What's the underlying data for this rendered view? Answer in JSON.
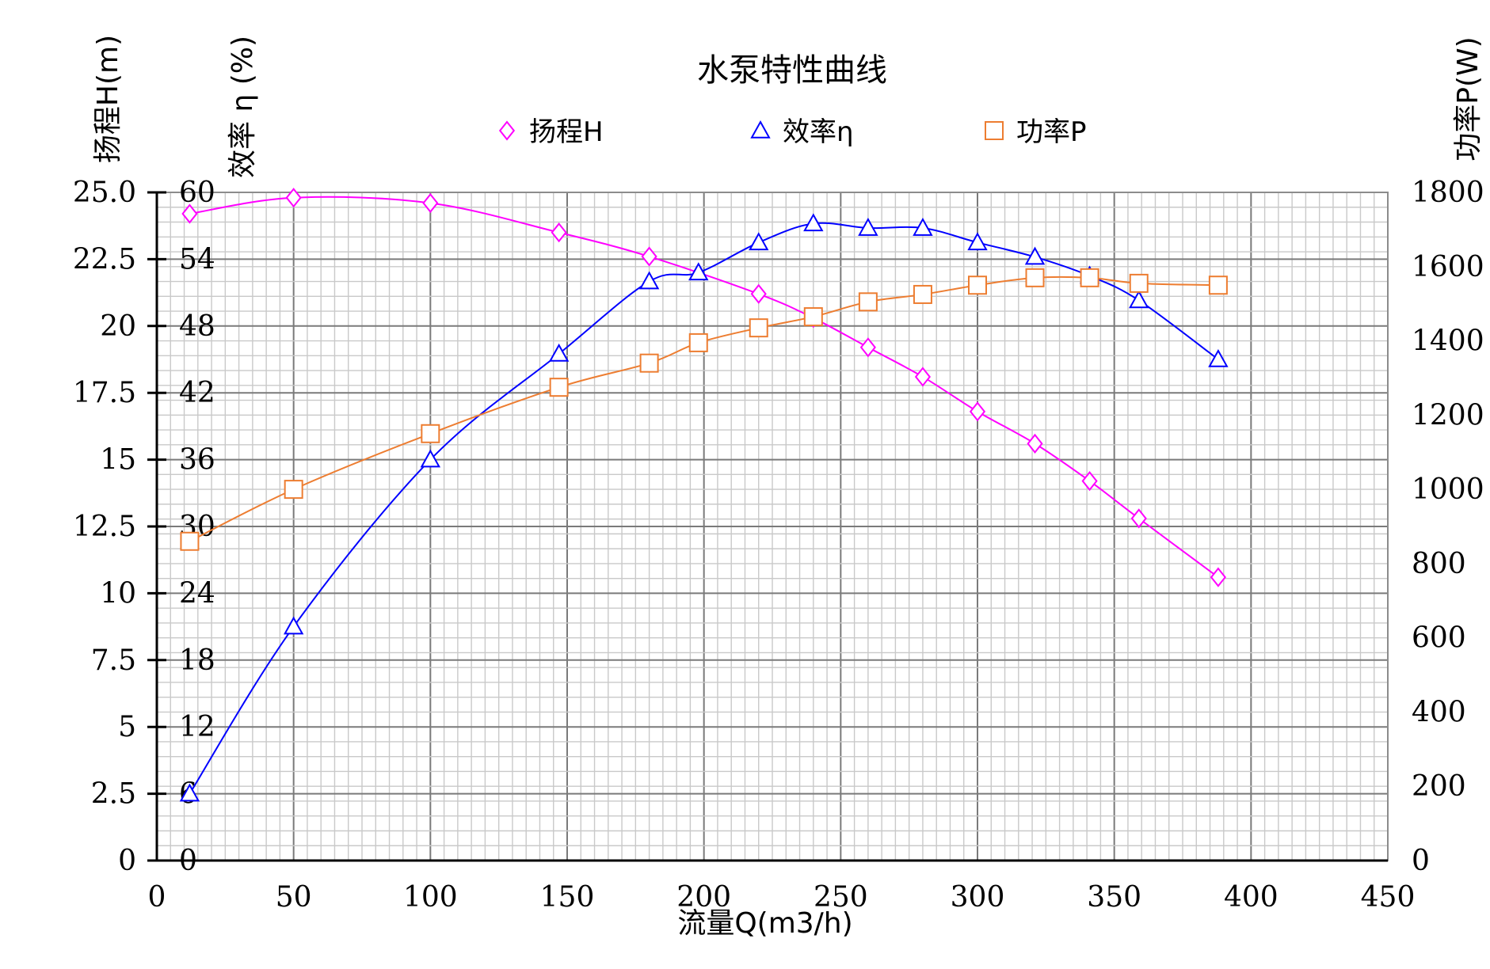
{
  "chart_data": {
    "type": "line",
    "title": "水泵特性曲线",
    "xlabel": "流量Q(m3/h)",
    "ylabel_head": "扬程H(m)",
    "ylabel_eff": "效率 η (%)",
    "ylabel_power": "功率P(W)",
    "xlim": [
      0,
      450
    ],
    "x_ticks": [
      "0",
      "50",
      "100",
      "150",
      "200",
      "250",
      "300",
      "350",
      "400",
      "450"
    ],
    "head_axis": {
      "ylim": [
        0,
        25
      ],
      "ticks": [
        "0",
        "2.5",
        "5",
        "7.5",
        "10",
        "12.5",
        "15",
        "17.5",
        "20",
        "22.5",
        "25.0"
      ]
    },
    "eff_axis": {
      "ylim": [
        0,
        60
      ],
      "ticks": [
        "0",
        "6",
        "12",
        "18",
        "24",
        "30",
        "36",
        "42",
        "48",
        "54",
        "60"
      ]
    },
    "power_axis": {
      "ylim": [
        0,
        1800
      ],
      "ticks": [
        "0",
        "200",
        "400",
        "600",
        "800",
        "1000",
        "1200",
        "1400",
        "1600",
        "1800"
      ]
    },
    "grid": true,
    "legend_placement": "top",
    "series": [
      {
        "name": "扬程H",
        "axis": "head",
        "marker": "diamond",
        "color": "#ff00ff",
        "x": [
          12,
          50,
          100,
          147,
          180,
          220,
          240,
          260,
          280,
          300,
          321,
          341,
          359,
          388
        ],
        "values": [
          24.2,
          24.8,
          24.6,
          23.5,
          22.6,
          21.2,
          20.3,
          19.2,
          18.1,
          16.8,
          15.6,
          14.2,
          12.8,
          10.6
        ]
      },
      {
        "name": "效率η",
        "axis": "eff",
        "marker": "triangle",
        "color": "#0000ff",
        "x": [
          12,
          50,
          100,
          147,
          180,
          198,
          220,
          240,
          260,
          280,
          300,
          321,
          341,
          359,
          388
        ],
        "values": [
          6,
          21,
          36,
          45.5,
          52,
          52.8,
          55.5,
          57.2,
          56.8,
          56.8,
          55.5,
          54.2,
          52.5,
          50.3,
          45
        ]
      },
      {
        "name": "功率P",
        "axis": "power",
        "marker": "square",
        "color": "#ed7d31",
        "x": [
          12,
          50,
          100,
          147,
          180,
          198,
          220,
          240,
          260,
          280,
          300,
          321,
          341,
          359,
          388
        ],
        "values": [
          860,
          1000,
          1150,
          1275,
          1340,
          1395,
          1435,
          1465,
          1505,
          1525,
          1550,
          1570,
          1570,
          1555,
          1550
        ]
      }
    ]
  }
}
